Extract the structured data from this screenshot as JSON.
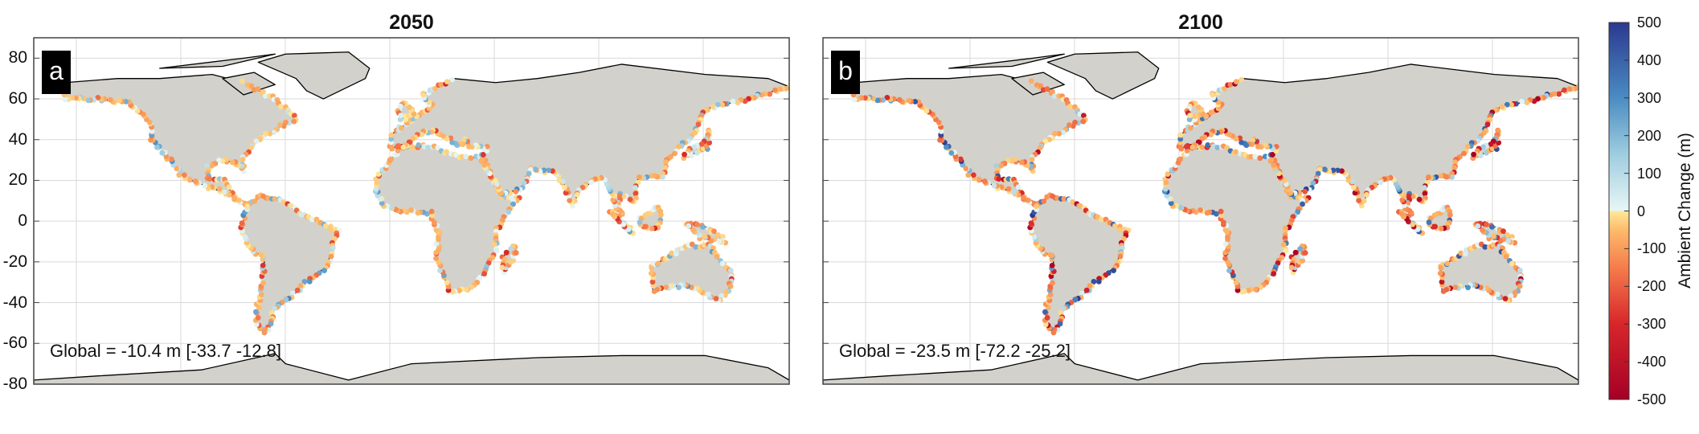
{
  "panels": [
    {
      "id": "a",
      "title": "2050",
      "label": "a",
      "global_text": "Global = -10.4 m [-33.7 -12.8]",
      "global_mean": -10.4,
      "ci": [
        -33.7,
        -12.8
      ],
      "intensity": 0.55
    },
    {
      "id": "b",
      "title": "2100",
      "label": "b",
      "global_text": "Global = -23.5 m [-72.2 -25.2]",
      "global_mean": -23.5,
      "ci": [
        -72.2,
        -25.2
      ],
      "intensity": 1.0
    }
  ],
  "y_axis": {
    "ticks": [
      "80",
      "60",
      "40",
      "20",
      "0",
      "-20",
      "-40",
      "-60",
      "-80"
    ],
    "range": [
      -80,
      90
    ]
  },
  "colorbar": {
    "label": "Ambient Change (m)",
    "ticks": [
      "500",
      "400",
      "300",
      "200",
      "100",
      "0",
      "-100",
      "-200",
      "-300",
      "-400",
      "-500"
    ],
    "range": [
      -500,
      500
    ],
    "colors": {
      "n500": "#a50026",
      "n300": "#d7262a",
      "n150": "#f57c4c",
      "n50": "#fdbb6b",
      "zero_neg": "#fee99a",
      "zero_pos": "#e8f6f5",
      "p150": "#9fcde0",
      "p300": "#4a8cc2",
      "p500": "#2b3990"
    }
  },
  "colors": {
    "land": "#d3d1cb",
    "coast": "#000000",
    "grid": "#d9d9d9"
  }
}
